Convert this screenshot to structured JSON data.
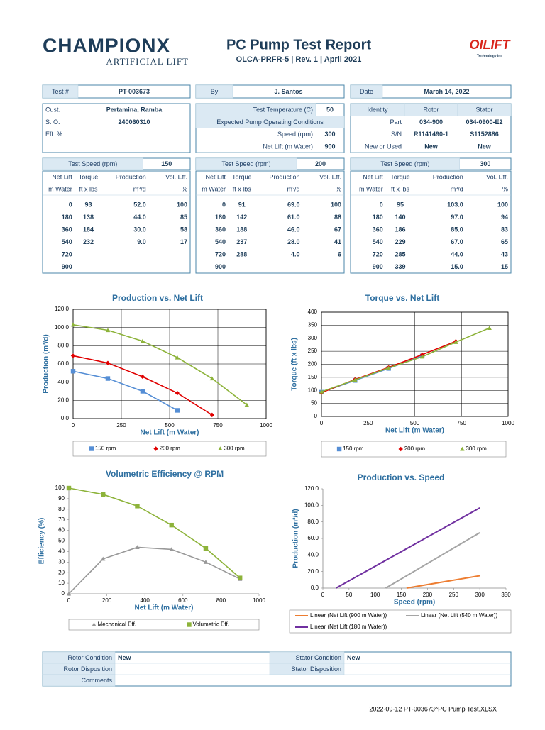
{
  "header": {
    "brand": "CHAMPIONX",
    "division": "ARTIFICIAL LIFT",
    "title": "PC Pump Test Report",
    "subtitle": "OLCA-PRFR-5 | Rev. 1 | April 2021",
    "partner": "OILIFT",
    "partner_tagline": "Technology Inc"
  },
  "info": {
    "test_no": {
      "label": "Test #",
      "value": "PT-003673"
    },
    "customer": {
      "label": "Cust.",
      "value": "Pertamina, Ramba"
    },
    "so": {
      "label": "S. O.",
      "value": "240060310"
    },
    "eff": {
      "label": "Eff. %"
    },
    "by": {
      "label": "By",
      "value": "J. Santos"
    },
    "temperature": {
      "label": "Test Temperature (C)",
      "value": 50
    },
    "conditions_heading": "Expected Pump Operating Conditions",
    "speed": {
      "label": "Speed (rpm)",
      "value": 300
    },
    "net_lift": {
      "label": "Net Lift (m Water)",
      "value": 900
    },
    "date": {
      "label": "Date",
      "value": "March 14, 2022"
    },
    "identity": {
      "headers": [
        "Identity",
        "Rotor",
        "Stator"
      ],
      "rows": [
        [
          "Part",
          "034-900",
          "034-0900-E2"
        ],
        [
          "S/N",
          "R1141490-1",
          "S1152886"
        ],
        [
          "New or Used",
          "New",
          "New"
        ]
      ]
    }
  },
  "tests": [
    {
      "label": "Test Speed (rpm)",
      "speed": 150,
      "headers": [
        "Net Lift",
        "Torque",
        "Production",
        "Vol. Eff."
      ],
      "units": [
        "m Water",
        "ft x lbs",
        "m³/d",
        "%"
      ],
      "rows": [
        [
          "0",
          "93",
          "52.0",
          "100"
        ],
        [
          "180",
          "138",
          "44.0",
          "85"
        ],
        [
          "360",
          "184",
          "30.0",
          "58"
        ],
        [
          "540",
          "232",
          "9.0",
          "17"
        ],
        [
          "720"
        ],
        [
          "900"
        ]
      ]
    },
    {
      "label": "Test Speed (rpm)",
      "speed": 200,
      "headers": [
        "Net Lift",
        "Torque",
        "Production",
        "Vol. Eff."
      ],
      "units": [
        "m Water",
        "ft x lbs",
        "m³/d",
        "%"
      ],
      "rows": [
        [
          "0",
          "91",
          "69.0",
          "100"
        ],
        [
          "180",
          "142",
          "61.0",
          "88"
        ],
        [
          "360",
          "188",
          "46.0",
          "67"
        ],
        [
          "540",
          "237",
          "28.0",
          "41"
        ],
        [
          "720",
          "288",
          "4.0",
          "6"
        ],
        [
          "900"
        ]
      ]
    },
    {
      "label": "Test Speed (rpm)",
      "speed": 300,
      "headers": [
        "Net Lift",
        "Torque",
        "Production",
        "Vol. Eff."
      ],
      "units": [
        "m Water",
        "ft x lbs",
        "m³/d",
        "%"
      ],
      "rows": [
        [
          "0",
          "95",
          "103.0",
          "100"
        ],
        [
          "180",
          "140",
          "97.0",
          "94"
        ],
        [
          "360",
          "186",
          "85.0",
          "83"
        ],
        [
          "540",
          "229",
          "67.0",
          "65"
        ],
        [
          "720",
          "285",
          "44.0",
          "43"
        ],
        [
          "900",
          "339",
          "15.0",
          "15"
        ]
      ]
    }
  ],
  "chart_data": [
    {
      "type": "line",
      "title": "Production vs. Net Lift",
      "xlabel": "Net Lift (m Water)",
      "ylabel": "Production (m³/d)",
      "xlim": [
        0,
        1000
      ],
      "xticks": [
        0,
        250,
        500,
        750,
        1000
      ],
      "ylim": [
        0,
        120
      ],
      "yticks": [
        {
          "value": 0,
          "label": "0.0"
        },
        {
          "value": 20,
          "label": "20.0"
        },
        {
          "value": 40,
          "label": "40.0"
        },
        {
          "value": 60,
          "label": "60.0"
        },
        {
          "value": 80,
          "label": "80.0"
        },
        {
          "value": 100,
          "label": "100.0"
        },
        {
          "value": 120,
          "label": "120.0"
        }
      ],
      "grid": true,
      "legend": "bottom",
      "series": [
        {
          "name": "150 rpm",
          "color": "#558ed5",
          "marker": "square",
          "x": [
            0,
            180,
            360,
            540
          ],
          "values": [
            52,
            44,
            30,
            9
          ]
        },
        {
          "name": "200 rpm",
          "color": "#e00000",
          "marker": "diamond",
          "x": [
            0,
            180,
            360,
            540,
            720
          ],
          "values": [
            69,
            61,
            46,
            28,
            4
          ]
        },
        {
          "name": "300 rpm",
          "color": "#8db33a",
          "marker": "triangle",
          "x": [
            0,
            180,
            360,
            540,
            720,
            900
          ],
          "values": [
            103,
            97,
            85,
            67,
            44,
            15
          ]
        }
      ]
    },
    {
      "type": "line",
      "title": "Torque  vs. Net Lift",
      "xlabel": "Net Lift (m Water)",
      "ylabel": "Torque (ft x lbs)",
      "xlim": [
        0,
        1000
      ],
      "xticks": [
        0,
        250,
        500,
        750,
        1000
      ],
      "ylim": [
        0,
        400
      ],
      "yticks": [
        0,
        50,
        100,
        150,
        200,
        250,
        300,
        350,
        400
      ],
      "grid": true,
      "legend": "bottom",
      "series": [
        {
          "name": "150 rpm",
          "color": "#558ed5",
          "marker": "square",
          "x": [
            0,
            180,
            360,
            540
          ],
          "values": [
            93,
            138,
            184,
            232
          ]
        },
        {
          "name": "200 rpm",
          "color": "#e00000",
          "marker": "diamond",
          "x": [
            0,
            180,
            360,
            540,
            720
          ],
          "values": [
            91,
            142,
            188,
            237,
            288
          ]
        },
        {
          "name": "300 rpm",
          "color": "#8db33a",
          "marker": "triangle",
          "x": [
            0,
            180,
            360,
            540,
            720,
            900
          ],
          "values": [
            95,
            140,
            186,
            229,
            285,
            339
          ]
        }
      ]
    },
    {
      "type": "line",
      "title": "Volumetric Efficiency @  RPM",
      "xlabel": "Net Lift (m Water)",
      "ylabel": "Efficiency (%)",
      "xlim": [
        0,
        1000
      ],
      "xticks": [
        0,
        200,
        400,
        600,
        800,
        1000
      ],
      "ylim": [
        0,
        100
      ],
      "yticks": [
        0,
        10,
        20,
        30,
        40,
        50,
        60,
        70,
        80,
        90,
        100
      ],
      "grid": false,
      "legend": "bottom",
      "series": [
        {
          "name": "Mechanical Eff.",
          "color": "#999999",
          "marker": "triangle",
          "x": [
            0,
            180,
            360,
            540,
            720,
            900
          ],
          "values": [
            0,
            33,
            44,
            42,
            30,
            14
          ]
        },
        {
          "name": "Volumetric Eff.",
          "color": "#8db33a",
          "marker": "square",
          "x": [
            0,
            180,
            360,
            540,
            720,
            900
          ],
          "values": [
            100,
            94,
            83,
            65,
            43,
            15
          ]
        }
      ]
    },
    {
      "type": "line",
      "title": "Production vs. Speed",
      "xlabel": "Speed (rpm)",
      "ylabel": "Production (m³/d)",
      "xlim": [
        0,
        350
      ],
      "xticks": [
        0,
        50,
        100,
        150,
        200,
        250,
        300,
        350
      ],
      "ylim": [
        0,
        120
      ],
      "yticks": [
        {
          "value": 0,
          "label": "0.0"
        },
        {
          "value": 20,
          "label": "20.0"
        },
        {
          "value": 40,
          "label": "40.0"
        },
        {
          "value": 60,
          "label": "60.0"
        },
        {
          "value": 80,
          "label": "80.0"
        },
        {
          "value": 100,
          "label": "100.0"
        },
        {
          "value": 120,
          "label": "120.0"
        }
      ],
      "grid": false,
      "legend": "bottom",
      "series": [
        {
          "name": "Linear (Net Lift (900 m Water))",
          "color": "#ed7d31",
          "marker": "none",
          "x": [
            160,
            300
          ],
          "values": [
            0,
            15
          ]
        },
        {
          "name": "Linear (Net Lift (540 m Water))",
          "color": "#a5a5a5",
          "marker": "none",
          "x": [
            120,
            300
          ],
          "values": [
            0,
            67
          ]
        },
        {
          "name": "Linear (Net Lift (180 m Water))",
          "color": "#7030a0",
          "marker": "none",
          "x": [
            25,
            300
          ],
          "values": [
            0,
            97
          ]
        }
      ]
    }
  ],
  "conditions": {
    "rotor_condition": {
      "label": "Rotor Condition",
      "value": "New"
    },
    "stator_condition": {
      "label": "Stator Condition",
      "value": "New"
    },
    "rotor_disposition": {
      "label": "Rotor Disposition"
    },
    "stator_disposition": {
      "label": "Stator Disposition"
    },
    "comments": {
      "label": "Comments"
    }
  },
  "footer": "2022-09-12  PT-003673^PC Pump Test.XLSX"
}
